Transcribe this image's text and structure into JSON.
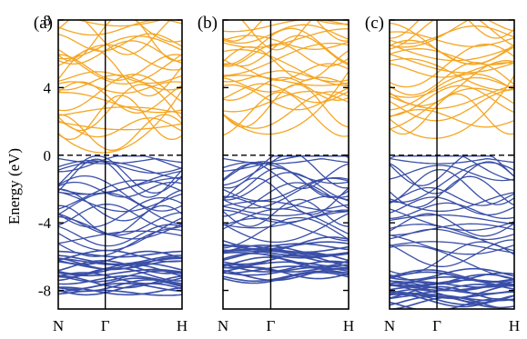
{
  "chart_data": {
    "type": "line",
    "ylabel": "Energy (eV)",
    "ylim": [
      -9.1,
      8
    ],
    "yticks": [
      -8,
      -4,
      0,
      4,
      8
    ],
    "kpoints": [
      "N",
      "Γ",
      "H"
    ],
    "fermi_level": 0,
    "grid": false,
    "colors": {
      "valence": "#3a4fa8",
      "conduction": "#f5a623",
      "axis": "#000000"
    },
    "panels": [
      {
        "label": "(a)",
        "band_gap": 0.0,
        "conduction_band_minimum": 0.0,
        "valence_band_maximum": -0.05,
        "conduction_range": [
          0.0,
          8.0
        ],
        "valence_range": [
          -8.2,
          -0.05
        ],
        "valence_dense_region": [
          -8.2,
          -5.8
        ]
      },
      {
        "label": "(b)",
        "band_gap": 1.1,
        "conduction_band_minimum": 1.1,
        "valence_band_maximum": -0.05,
        "conduction_range": [
          1.1,
          8.0
        ],
        "valence_range": [
          -7.3,
          -0.05
        ],
        "valence_dense_region": [
          -7.3,
          -5.2
        ]
      },
      {
        "label": "(c)",
        "band_gap": 0.85,
        "conduction_band_minimum": 0.85,
        "valence_band_maximum": -0.05,
        "conduction_range": [
          0.85,
          8.0
        ],
        "valence_range": [
          -8.9,
          -0.05
        ],
        "valence_dense_region": [
          -8.9,
          -7.0
        ]
      }
    ]
  }
}
